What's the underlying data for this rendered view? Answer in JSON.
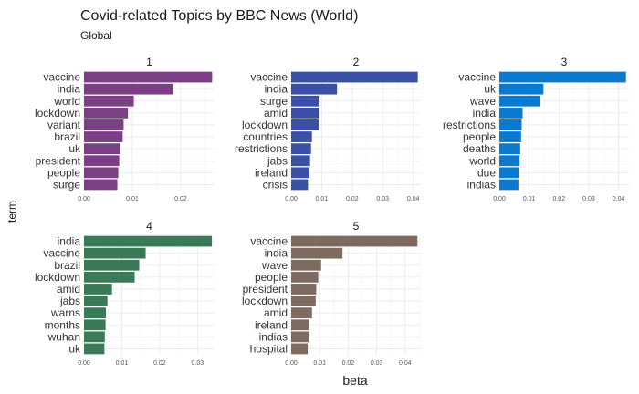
{
  "chart_data": {
    "type": "bar",
    "orientation": "horizontal",
    "title": "Covid-related Topics by BBC News (World)",
    "subtitle": "Global",
    "xlabel": "beta",
    "ylabel": "term",
    "grid": true,
    "legend": "none",
    "facets": [
      {
        "label": "1",
        "color": "#7b3f85",
        "xlim": [
          0,
          0.027
        ],
        "ticks": [
          0,
          0.01,
          0.02
        ],
        "tick_labels": [
          "0.00",
          "0.01",
          "0.02"
        ],
        "categories": [
          "vaccine",
          "india",
          "world",
          "lockdown",
          "variant",
          "brazil",
          "uk",
          "president",
          "people",
          "surge"
        ],
        "values": [
          0.0265,
          0.0185,
          0.0103,
          0.0091,
          0.0082,
          0.008,
          0.0075,
          0.0073,
          0.0071,
          0.0069
        ]
      },
      {
        "label": "2",
        "color": "#3a4fa6",
        "xlim": [
          0,
          0.0425
        ],
        "ticks": [
          0,
          0.01,
          0.02,
          0.03,
          0.04
        ],
        "tick_labels": [
          "0.00",
          "0.01",
          "0.02",
          "0.03",
          "0.04"
        ],
        "categories": [
          "vaccine",
          "india",
          "surge",
          "amid",
          "lockdown",
          "countries",
          "restrictions",
          "jabs",
          "ireland",
          "crisis"
        ],
        "values": [
          0.0415,
          0.015,
          0.0093,
          0.0092,
          0.0091,
          0.0068,
          0.0065,
          0.0062,
          0.006,
          0.0055
        ]
      },
      {
        "label": "3",
        "color": "#0a7ad1",
        "xlim": [
          0,
          0.0435
        ],
        "ticks": [
          0,
          0.01,
          0.02,
          0.03,
          0.04
        ],
        "tick_labels": [
          "0.00",
          "0.01",
          "0.02",
          "0.03",
          "0.04"
        ],
        "categories": [
          "vaccine",
          "uk",
          "wave",
          "india",
          "restrictions",
          "people",
          "deaths",
          "world",
          "due",
          "indias"
        ],
        "values": [
          0.0425,
          0.0148,
          0.0138,
          0.0078,
          0.0075,
          0.0073,
          0.007,
          0.0068,
          0.0065,
          0.0064
        ]
      },
      {
        "label": "4",
        "color": "#3a7a58",
        "xlim": [
          0,
          0.0345
        ],
        "ticks": [
          0,
          0.01,
          0.02,
          0.03
        ],
        "tick_labels": [
          "0.00",
          "0.01",
          "0.02",
          "0.03"
        ],
        "categories": [
          "india",
          "vaccine",
          "brazil",
          "lockdown",
          "amid",
          "jabs",
          "warns",
          "months",
          "wuhan",
          "uk"
        ],
        "values": [
          0.0338,
          0.0163,
          0.0146,
          0.0134,
          0.0074,
          0.0062,
          0.0058,
          0.0057,
          0.0055,
          0.0054
        ]
      },
      {
        "label": "5",
        "color": "#7e6a5e",
        "xlim": [
          0,
          0.0455
        ],
        "ticks": [
          0,
          0.01,
          0.02,
          0.03,
          0.04
        ],
        "tick_labels": [
          "0.00",
          "0.01",
          "0.02",
          "0.03",
          "0.04"
        ],
        "categories": [
          "vaccine",
          "india",
          "wave",
          "people",
          "president",
          "lockdown",
          "amid",
          "ireland",
          "indias",
          "hospital"
        ],
        "values": [
          0.0443,
          0.018,
          0.0105,
          0.0095,
          0.0088,
          0.0086,
          0.0073,
          0.0062,
          0.0061,
          0.0058
        ]
      }
    ]
  }
}
